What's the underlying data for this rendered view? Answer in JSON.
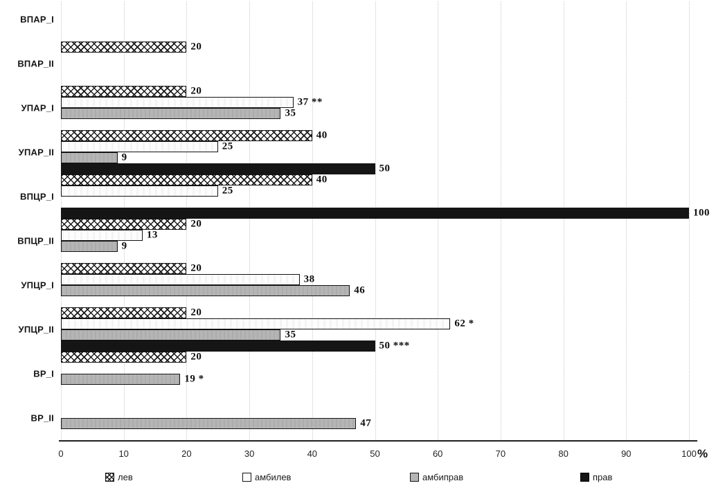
{
  "chart_data": {
    "type": "bar",
    "orientation": "horizontal",
    "title": "",
    "xlabel": "%",
    "ylabel": "",
    "xlim": [
      0,
      100
    ],
    "xticks": [
      0,
      10,
      20,
      30,
      40,
      50,
      60,
      70,
      80,
      90,
      100
    ],
    "grid": "vertical-dotted",
    "legend_position": "bottom",
    "categories": [
      "ВПАР_I",
      "ВПАР_II",
      "УПАР_I",
      "УПАР_II",
      "ВПЦР_I",
      "ВПЦР_II",
      "УПЦР_I",
      "УПЦР_II",
      "ВР_I",
      "ВР_II"
    ],
    "series": [
      {
        "name": "лев",
        "style": "crosshatch",
        "values": [
          null,
          20,
          20,
          40,
          40,
          20,
          20,
          20,
          20,
          null
        ],
        "labels": [
          "",
          "20",
          "20",
          "40",
          "40",
          "20",
          "20",
          "20",
          "20",
          ""
        ]
      },
      {
        "name": "амбилев",
        "style": "white",
        "values": [
          null,
          null,
          37,
          25,
          25,
          13,
          38,
          62,
          null,
          null
        ],
        "labels": [
          "",
          "",
          "37 **",
          "25",
          "25",
          "13",
          "38",
          "62 *",
          "",
          ""
        ]
      },
      {
        "name": "амбиправ",
        "style": "gray",
        "values": [
          null,
          null,
          35,
          9,
          null,
          9,
          46,
          35,
          19,
          47
        ],
        "labels": [
          "",
          "",
          "35",
          "9",
          "",
          "9",
          "46",
          "35",
          "19 *",
          "47"
        ]
      },
      {
        "name": "прав",
        "style": "black",
        "values": [
          null,
          null,
          null,
          50,
          100,
          null,
          null,
          50,
          null,
          null
        ],
        "labels": [
          "",
          "",
          "",
          "50",
          "100",
          "",
          "",
          "50 ***",
          "",
          ""
        ]
      }
    ]
  },
  "colors": {
    "bar_gray": "#b5b5b5",
    "bar_black": "#151515",
    "bar_border": "#131313",
    "gridline": "#c9c9c9",
    "axis": "#1f1f1f",
    "text": "#141414"
  }
}
